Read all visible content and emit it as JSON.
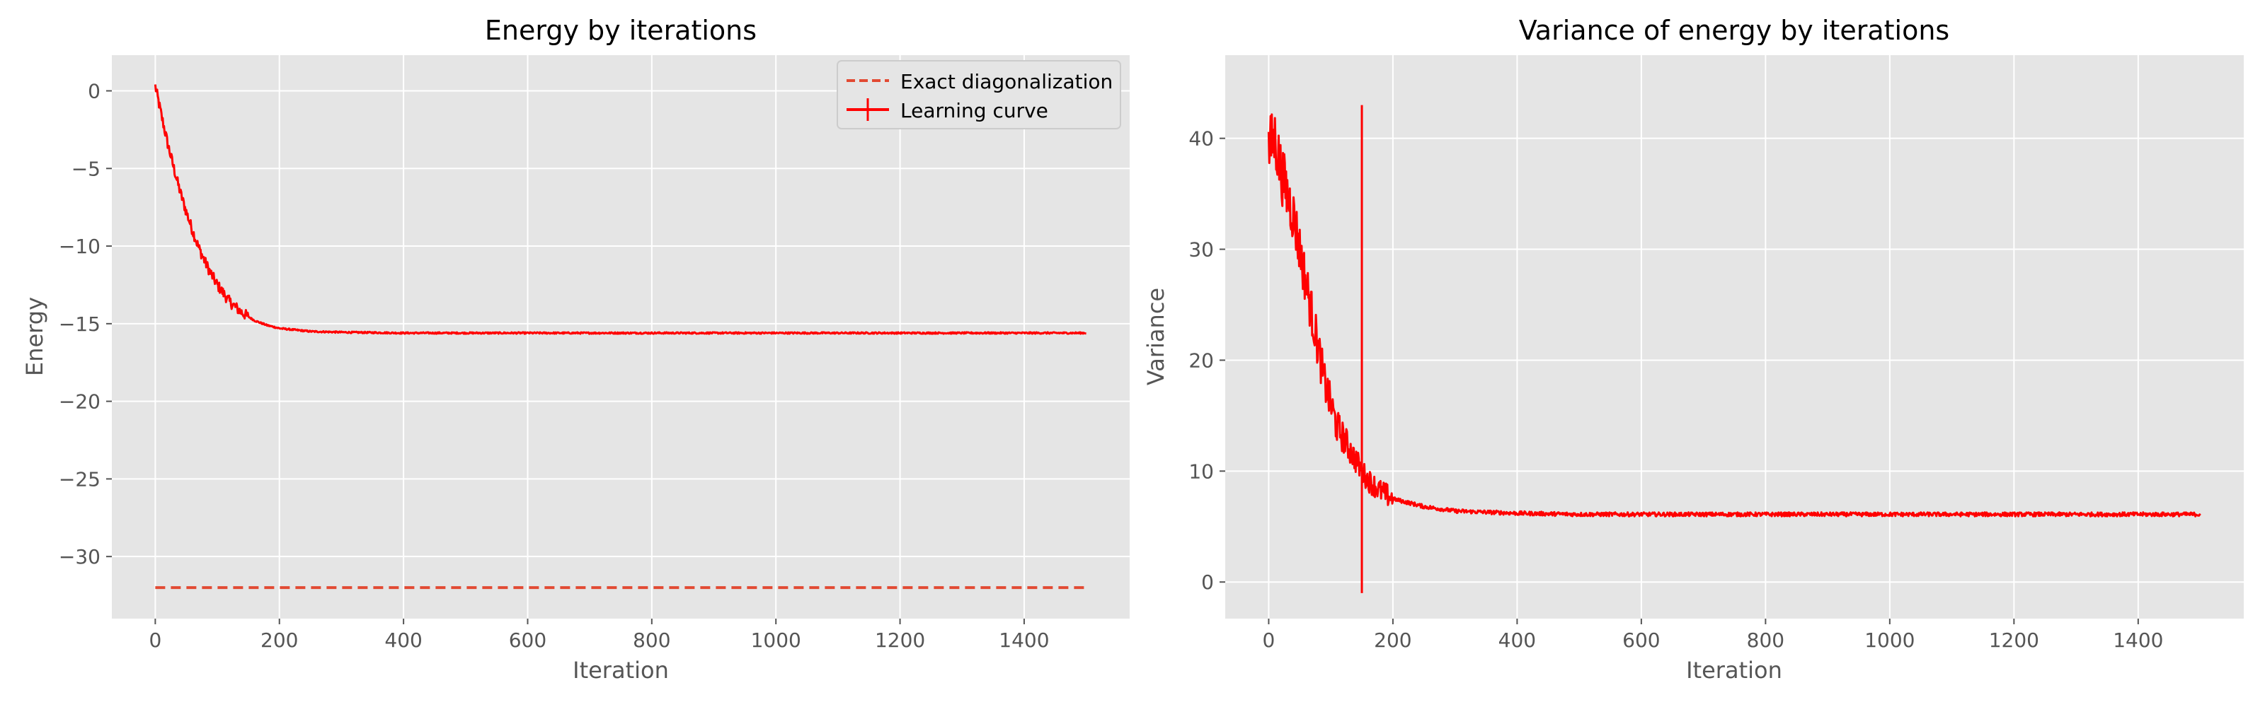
{
  "chart_data": [
    {
      "type": "line",
      "title": "Energy by iterations",
      "xlabel": "Iteration",
      "ylabel": "Energy",
      "xlim": [
        -70,
        1570
      ],
      "ylim": [
        -34.0,
        2.3
      ],
      "xticks": [
        0,
        200,
        400,
        600,
        800,
        1000,
        1200,
        1400
      ],
      "yticks": [
        0,
        -5,
        -10,
        -15,
        -20,
        -25,
        -30
      ],
      "ytick_labels": [
        "0",
        "−5",
        "−10",
        "−15",
        "−20",
        "−25",
        "−30"
      ],
      "grid": true,
      "legend": "top-right",
      "series": [
        {
          "name": "Exact diagonalization",
          "style": "dashed",
          "color": "#e24a33",
          "x": [
            0,
            1500
          ],
          "y": [
            -32.0,
            -32.0
          ]
        },
        {
          "name": "Learning curve",
          "style": "solid",
          "color": "#ff0000",
          "x": [
            0,
            10,
            20,
            30,
            40,
            50,
            60,
            70,
            80,
            90,
            100,
            120,
            140,
            160,
            180,
            200,
            250,
            300,
            400,
            500,
            700,
            1000,
            1500
          ],
          "y": [
            0.3,
            -1.6,
            -3.4,
            -5.0,
            -6.5,
            -7.8,
            -9.0,
            -10.1,
            -11.0,
            -11.8,
            -12.5,
            -13.6,
            -14.3,
            -14.8,
            -15.1,
            -15.3,
            -15.5,
            -15.55,
            -15.6,
            -15.6,
            -15.6,
            -15.6,
            -15.6
          ]
        }
      ]
    },
    {
      "type": "line",
      "title": "Variance of energy by iterations",
      "xlabel": "Iteration",
      "ylabel": "Variance",
      "xlim": [
        -70,
        1570
      ],
      "ylim": [
        -3.3,
        47.5
      ],
      "xticks": [
        0,
        200,
        400,
        600,
        800,
        1000,
        1200,
        1400
      ],
      "yticks": [
        0,
        10,
        20,
        30,
        40
      ],
      "ytick_labels": [
        "0",
        "10",
        "20",
        "30",
        "40"
      ],
      "grid": true,
      "series": [
        {
          "color": "#ff0000",
          "x": [
            0,
            10,
            20,
            30,
            40,
            50,
            60,
            70,
            80,
            90,
            100,
            110,
            120,
            130,
            140,
            150,
            160,
            180,
            200,
            250,
            300,
            400,
            500,
            700,
            1000,
            1500
          ],
          "y": [
            39,
            40,
            37,
            35,
            33,
            30,
            27,
            24,
            21,
            18,
            16,
            14,
            13,
            12,
            11,
            10,
            9.2,
            8.2,
            7.5,
            6.8,
            6.4,
            6.2,
            6.1,
            6.1,
            6.1,
            6.1
          ],
          "spike": {
            "x": 150,
            "y_range": [
              -1,
              43
            ]
          }
        }
      ]
    }
  ]
}
